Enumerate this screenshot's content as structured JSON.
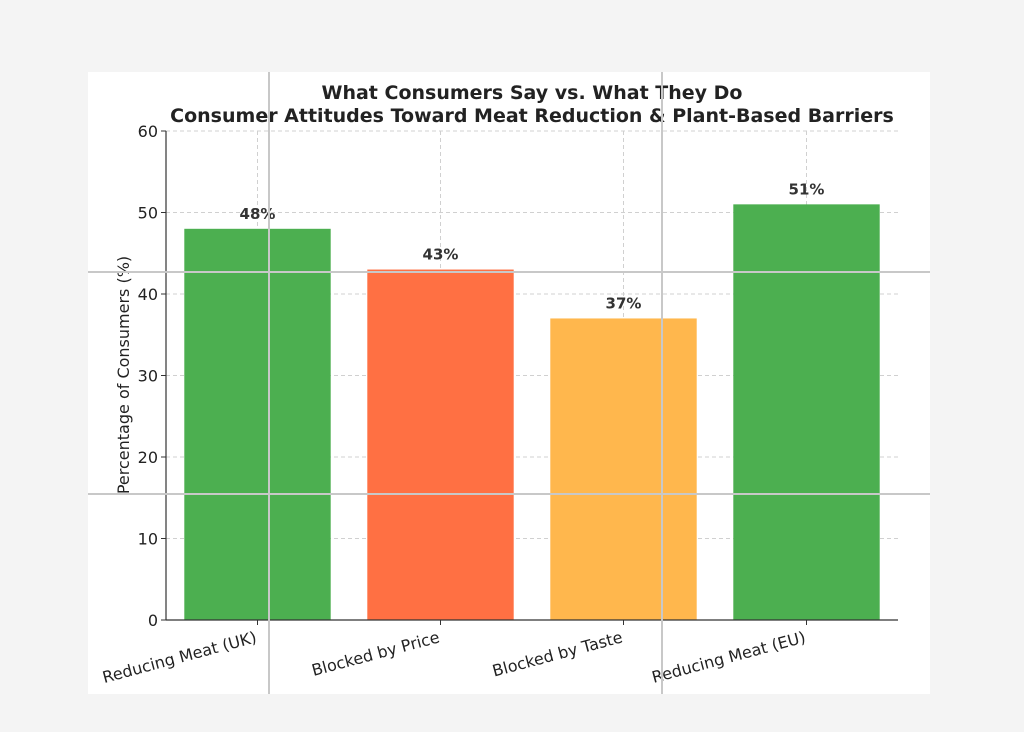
{
  "chart_data": {
    "type": "bar",
    "title": "What Consumers Say vs. What They Do",
    "subtitle": "Consumer Attitudes Toward Meat Reduction & Plant-Based Barriers",
    "xlabel": "",
    "ylabel": "Percentage of Consumers (%)",
    "ylim": [
      0,
      60
    ],
    "yticks": [
      0,
      10,
      20,
      30,
      40,
      50,
      60
    ],
    "grid": true,
    "legend": "none",
    "categories": [
      "Reducing Meat (UK)",
      "Blocked by Price",
      "Blocked by Taste",
      "Reducing Meat (EU)"
    ],
    "values": [
      48,
      43,
      37,
      51
    ],
    "value_labels": [
      "48%",
      "43%",
      "37%",
      "51%"
    ],
    "colors": [
      "#4caf50",
      "#ff7043",
      "#ffb74d",
      "#4caf50"
    ]
  }
}
